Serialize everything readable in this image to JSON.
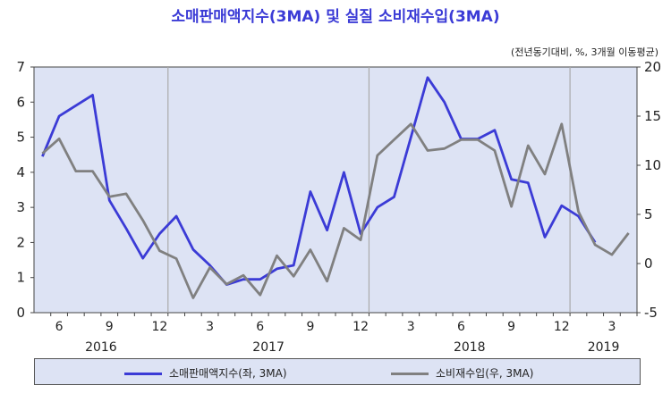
{
  "colors": {
    "left_series": "#3b3bd6",
    "right_series": "#808080",
    "plot_bg": "#dde3f4"
  },
  "chart_data": {
    "type": "line",
    "title": "소매판매액지수(3MA) 및 실질 소비재수입(3MA)",
    "unit_note": "(전년동기대비, %, 3개월 이동평균)",
    "x": [
      "2016-05",
      "2016-06",
      "2016-07",
      "2016-08",
      "2016-09",
      "2016-10",
      "2016-11",
      "2016-12",
      "2017-01",
      "2017-02",
      "2017-03",
      "2017-04",
      "2017-05",
      "2017-06",
      "2017-07",
      "2017-08",
      "2017-09",
      "2017-10",
      "2017-11",
      "2017-12",
      "2018-01",
      "2018-02",
      "2018-03",
      "2018-04",
      "2018-05",
      "2018-06",
      "2018-07",
      "2018-08",
      "2018-09",
      "2018-10",
      "2018-11",
      "2018-12",
      "2019-01",
      "2019-02",
      "2019-03",
      "2019-04"
    ],
    "x_tick_labels": [
      {
        "at": "2016-06",
        "label": "6"
      },
      {
        "at": "2016-09",
        "label": "9"
      },
      {
        "at": "2016-12",
        "label": "12"
      },
      {
        "at": "2017-03",
        "label": "3"
      },
      {
        "at": "2017-06",
        "label": "6"
      },
      {
        "at": "2017-09",
        "label": "9"
      },
      {
        "at": "2017-12",
        "label": "12"
      },
      {
        "at": "2018-03",
        "label": "3"
      },
      {
        "at": "2018-06",
        "label": "6"
      },
      {
        "at": "2018-09",
        "label": "9"
      },
      {
        "at": "2018-12",
        "label": "12"
      },
      {
        "at": "2019-03",
        "label": "3"
      }
    ],
    "year_labels": [
      {
        "at": "2016-08",
        "label": "2016"
      },
      {
        "at": "2017-06",
        "label": "2017"
      },
      {
        "at": "2018-06",
        "label": "2018"
      },
      {
        "at": "2019-02",
        "label": "2019"
      }
    ],
    "year_separators": [
      "2016-12",
      "2017-12",
      "2018-12"
    ],
    "y_left": {
      "min": 0,
      "max": 7,
      "step": 1
    },
    "y_right": {
      "min": -5,
      "max": 20,
      "step": 5
    },
    "grid": false,
    "legend_position": "bottom",
    "series": [
      {
        "name": "소매판매액지수(좌, 3MA)",
        "axis": "left",
        "values": [
          4.45,
          5.6,
          5.9,
          6.2,
          3.2,
          2.4,
          1.55,
          2.25,
          2.75,
          1.8,
          1.35,
          0.8,
          0.95,
          0.95,
          1.25,
          1.35,
          3.45,
          2.35,
          4.0,
          2.25,
          3.0,
          3.3,
          5.0,
          6.7,
          6.0,
          4.95,
          4.95,
          5.2,
          3.8,
          3.7,
          2.15,
          3.05,
          2.75,
          2.0,
          null,
          null
        ]
      },
      {
        "name": "소비재수입(우, 3MA)",
        "axis": "right",
        "values": [
          11.2,
          12.7,
          9.4,
          9.4,
          6.8,
          7.1,
          4.4,
          1.3,
          0.5,
          -3.5,
          -0.4,
          -2.1,
          -1.2,
          -3.2,
          0.8,
          -1.3,
          1.4,
          -1.8,
          3.6,
          2.4,
          11.0,
          12.6,
          14.2,
          11.5,
          11.7,
          12.6,
          12.6,
          11.5,
          5.8,
          12.0,
          9.1,
          14.2,
          5.3,
          1.9,
          0.9,
          3.1
        ]
      }
    ]
  }
}
